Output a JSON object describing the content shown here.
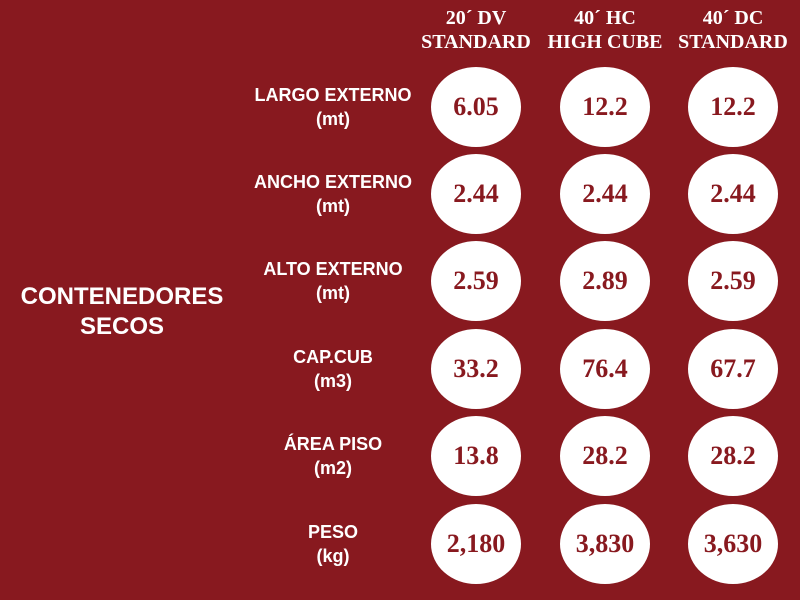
{
  "title": {
    "line1": "CONTENEDORES",
    "line2": "SECOS"
  },
  "columns": [
    {
      "line1": "20´ DV",
      "line2": "STANDARD"
    },
    {
      "line1": "40´ HC",
      "line2": "HIGH CUBE"
    },
    {
      "line1": "40´ DC",
      "line2": "STANDARD"
    }
  ],
  "rows": [
    {
      "label": "LARGO EXTERNO",
      "unit": "(mt)",
      "values": [
        "6.05",
        "12.2",
        "12.2"
      ]
    },
    {
      "label": "ANCHO EXTERNO",
      "unit": "(mt)",
      "values": [
        "2.44",
        "2.44",
        "2.44"
      ]
    },
    {
      "label": "ALTO EXTERNO",
      "unit": "(mt)",
      "values": [
        "2.59",
        "2.89",
        "2.59"
      ]
    },
    {
      "label": "CAP.CUB",
      "unit": "(m3)",
      "values": [
        "33.2",
        "76.4",
        "67.7"
      ]
    },
    {
      "label": "ÁREA PISO",
      "unit": "(m2)",
      "values": [
        "13.8",
        "28.2",
        "28.2"
      ]
    },
    {
      "label": "PESO",
      "unit": "(kg)",
      "values": [
        "2,180",
        "3,830",
        "3,630"
      ]
    }
  ],
  "colors": {
    "background": "#88191f",
    "circle": "#ffffff",
    "text_light": "#ffffff",
    "text_dark": "#88191f"
  }
}
